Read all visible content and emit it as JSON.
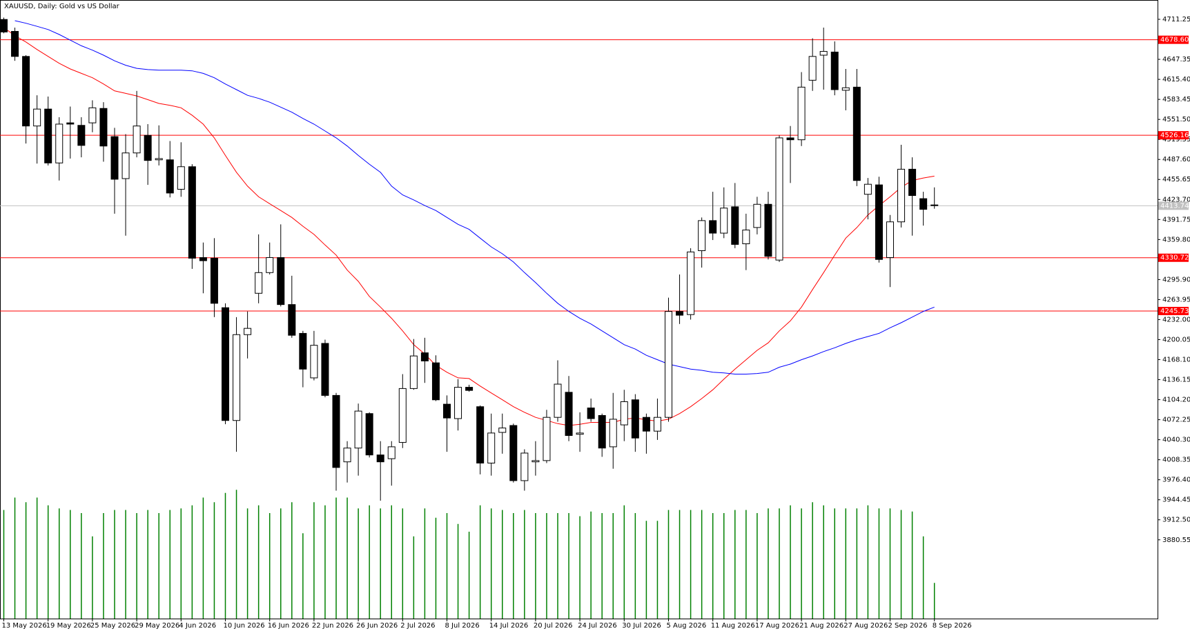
{
  "chart_data": {
    "type": "candlestick",
    "title": "XAUUSD, Daily:  Gold vs US Dollar",
    "categories": [
      "13 May 2026",
      null,
      null,
      null,
      "19 May 2026",
      null,
      null,
      null,
      "25 May 2026",
      null,
      null,
      null,
      "29 May 2026",
      null,
      null,
      null,
      "4 Jun 2026",
      null,
      null,
      null,
      "10 Jun 2026",
      null,
      null,
      null,
      "16 Jun 2026",
      null,
      null,
      null,
      "22 Jun 2026",
      null,
      null,
      null,
      "26 Jun 2026",
      null,
      null,
      null,
      "2 Jul 2026",
      null,
      null,
      null,
      "8 Jul 2026",
      null,
      null,
      null,
      "14 Jul 2026",
      null,
      null,
      null,
      "20 Jul 2026",
      null,
      null,
      null,
      "24 Jul 2026",
      null,
      null,
      null,
      "30 Jul 2026",
      null,
      null,
      null,
      "5 Aug 2026",
      null,
      null,
      null,
      "11 Aug 2026",
      null,
      null,
      null,
      "17 Aug 2026",
      null,
      null,
      null,
      "21 Aug 2026",
      null,
      null,
      null,
      "27 Aug 2026",
      null,
      null,
      null,
      "2 Sep 2026",
      null,
      null,
      null,
      "8 Sep 2026"
    ],
    "open": [
      4711,
      4692,
      4652,
      4541,
      4568,
      4482,
      4546,
      4542,
      4546,
      4569,
      4524,
      4457,
      4498,
      4526,
      4487,
      4487,
      4440,
      4476,
      4331,
      4330,
      4251,
      4071,
      4208,
      4274,
      4307,
      4331,
      4256,
      4210,
      4139,
      4194,
      4111,
      4005,
      4027,
      4082,
      4016,
      4010,
      4036,
      4122,
      4179,
      4163,
      4097,
      4074,
      4124,
      4093,
      4003,
      4052,
      4063,
      3975,
      4005,
      4007,
      4076,
      4116,
      4049,
      4091,
      4079,
      4029,
      4064,
      4104,
      4076,
      4054,
      4076,
      4245,
      4240,
      4342,
      4390,
      4370,
      4412,
      4353,
      4379,
      4416,
      4327,
      4522,
      4519,
      4614,
      4654,
      4659,
      4598,
      4603,
      4432,
      4447,
      4331,
      4388,
      4472,
      4425,
      4415
    ],
    "high": [
      4714,
      4698,
      4654,
      4590,
      4588,
      4555,
      4572,
      4555,
      4582,
      4579,
      4538,
      4528,
      4597,
      4544,
      4542,
      4517,
      4515,
      4480,
      4355,
      4362,
      4258,
      4236,
      4245,
      4368,
      4355,
      4384,
      4302,
      4214,
      4214,
      4200,
      4115,
      4038,
      4098,
      4084,
      4038,
      4038,
      4145,
      4201,
      4203,
      4175,
      4111,
      4137,
      4128,
      4095,
      4082,
      4082,
      4066,
      4025,
      4038,
      4088,
      4167,
      4142,
      4084,
      4106,
      4082,
      4115,
      4120,
      4113,
      4082,
      4106,
      4267,
      4304,
      4346,
      4395,
      4436,
      4443,
      4450,
      4401,
      4428,
      4436,
      4526,
      4541,
      4627,
      4681,
      4698,
      4676,
      4632,
      4632,
      4458,
      4460,
      4399,
      4511,
      4491,
      4436,
      4443
    ],
    "low": [
      4689,
      4645,
      4513,
      4481,
      4478,
      4454,
      4489,
      4491,
      4531,
      4484,
      4401,
      4366,
      4491,
      4447,
      4478,
      4427,
      4428,
      4313,
      4274,
      4236,
      4065,
      4021,
      4170,
      4258,
      4304,
      4253,
      4203,
      4124,
      4135,
      4108,
      3959,
      3972,
      3983,
      4012,
      3943,
      3967,
      4027,
      4120,
      4131,
      4102,
      4021,
      4055,
      4117,
      3985,
      3983,
      4018,
      3972,
      3959,
      3983,
      4003,
      4069,
      4038,
      4021,
      4069,
      4013,
      3994,
      4038,
      4021,
      4018,
      4040,
      4069,
      4225,
      4232,
      4315,
      4359,
      4362,
      4346,
      4311,
      4368,
      4328,
      4324,
      4450,
      4509,
      4597,
      4599,
      4590,
      4566,
      4445,
      4392,
      4323,
      4284,
      4379,
      4366,
      4382,
      4409
    ],
    "close": [
      4691,
      4652,
      4541,
      4568,
      4482,
      4544,
      4544,
      4510,
      4570,
      4509,
      4456,
      4498,
      4541,
      4486,
      4489,
      4434,
      4476,
      4330,
      4326,
      4258,
      4071,
      4208,
      4218,
      4307,
      4331,
      4256,
      4207,
      4153,
      4191,
      4111,
      3996,
      4027,
      4086,
      4016,
      4005,
      4029,
      4122,
      4174,
      4166,
      4104,
      4075,
      4124,
      4119,
      4003,
      4051,
      4059,
      3975,
      4019,
      4007,
      4076,
      4129,
      4047,
      4051,
      4074,
      4027,
      4073,
      4101,
      4043,
      4054,
      4076,
      4245,
      4239,
      4340,
      4390,
      4370,
      4410,
      4352,
      4375,
      4416,
      4333,
      4522,
      4519,
      4603,
      4652,
      4660,
      4599,
      4602,
      4454,
      4448,
      4328,
      4388,
      4472,
      4430,
      4408,
      4414
    ],
    "moving_averages": [
      {
        "color": "#ff0000",
        "values": [
          4698,
          4685,
          4675,
          4663,
          4652,
          4641,
          4632,
          4625,
          4618,
          4608,
          4597,
          4593,
          4589,
          4583,
          4577,
          4574,
          4570,
          4558,
          4544,
          4522,
          4494,
          4467,
          4445,
          4428,
          4417,
          4406,
          4395,
          4381,
          4368,
          4351,
          4335,
          4311,
          4293,
          4269,
          4252,
          4234,
          4214,
          4192,
          4177,
          4159,
          4148,
          4139,
          4138,
          4126,
          4115,
          4104,
          4093,
          4084,
          4076,
          4071,
          4066,
          4063,
          4065,
          4068,
          4068,
          4068,
          4073,
          4075,
          4072,
          4070,
          4073,
          4082,
          4093,
          4106,
          4120,
          4137,
          4153,
          4168,
          4183,
          4195,
          4214,
          4230,
          4252,
          4280,
          4307,
          4335,
          4362,
          4379,
          4399,
          4414,
          4428,
          4443,
          4454,
          4458,
          4461
        ]
      },
      {
        "color": "#0000ff",
        "values": [
          null,
          4709,
          4705,
          4700,
          4695,
          4687,
          4678,
          4669,
          4662,
          4654,
          4645,
          4638,
          4633,
          4631,
          4630,
          4630,
          4630,
          4629,
          4625,
          4618,
          4608,
          4599,
          4590,
          4585,
          4579,
          4571,
          4563,
          4553,
          4544,
          4533,
          4522,
          4509,
          4494,
          4480,
          4467,
          4445,
          4431,
          4423,
          4414,
          4406,
          4395,
          4384,
          4376,
          4362,
          4348,
          4337,
          4324,
          4307,
          4291,
          4274,
          4258,
          4245,
          4234,
          4225,
          4214,
          4203,
          4192,
          4185,
          4175,
          4168,
          4161,
          4157,
          4153,
          4151,
          4148,
          4147,
          4145,
          4145,
          4146,
          4148,
          4156,
          4161,
          4168,
          4174,
          4181,
          4187,
          4194,
          4200,
          4205,
          4210,
          4219,
          4227,
          4236,
          4245,
          4252
        ]
      }
    ],
    "volumes": [
      70,
      78,
      75,
      78,
      73,
      71,
      70,
      68,
      53,
      68,
      70,
      70,
      68,
      70,
      68,
      70,
      71,
      73,
      78,
      75,
      81,
      83,
      71,
      73,
      68,
      71,
      75,
      55,
      75,
      73,
      78,
      78,
      71,
      73,
      71,
      73,
      71,
      53,
      71,
      65,
      68,
      61,
      56,
      73,
      71,
      70,
      68,
      70,
      68,
      68,
      68,
      68,
      66,
      69,
      68,
      68,
      73,
      68,
      63,
      63,
      70,
      70,
      70,
      70,
      68,
      68,
      70,
      70,
      68,
      71,
      71,
      73,
      71,
      75,
      73,
      71,
      71,
      71,
      73,
      71,
      71,
      70,
      69,
      53,
      23
    ],
    "vlim": [
      0,
      100
    ],
    "volume_color": "#008000",
    "ylim": [
      3754.84,
      4739.86
    ],
    "yticks": [
      4711.25,
      4647.35,
      {
        "value": 4615.4,
        "label": "4615.40"
      },
      4583.45,
      {
        "value": 4551.5,
        "label": "4551.50"
      },
      4519.55,
      {
        "value": 4487.6,
        "label": "4487.60"
      },
      4455.65,
      {
        "value": 4423.7,
        "label": "4423.70"
      },
      4391.75,
      {
        "value": 4359.8,
        "label": "4359.80"
      },
      {
        "value": 4295.9,
        "label": "4295.90"
      },
      4263.95,
      {
        "value": 4232.0,
        "label": "4232.00"
      },
      4200.05,
      {
        "value": 4168.1,
        "label": "4168.10"
      },
      4136.15,
      {
        "value": 4104.2,
        "label": "4104.20"
      },
      4072.25,
      {
        "value": 4040.3,
        "label": "4040.30"
      },
      4008.35,
      {
        "value": 3976.4,
        "label": "3976.40"
      },
      3944.45,
      {
        "value": 3912.5,
        "label": "3912.50"
      },
      3880.55
    ],
    "levels": [
      {
        "value": 4678.6,
        "label": "4678.60"
      },
      4526.16,
      4330.72,
      4245.73
    ],
    "level_color": "#ff0000",
    "current_price": 4413.74,
    "current_color": "#c0c0c0"
  }
}
